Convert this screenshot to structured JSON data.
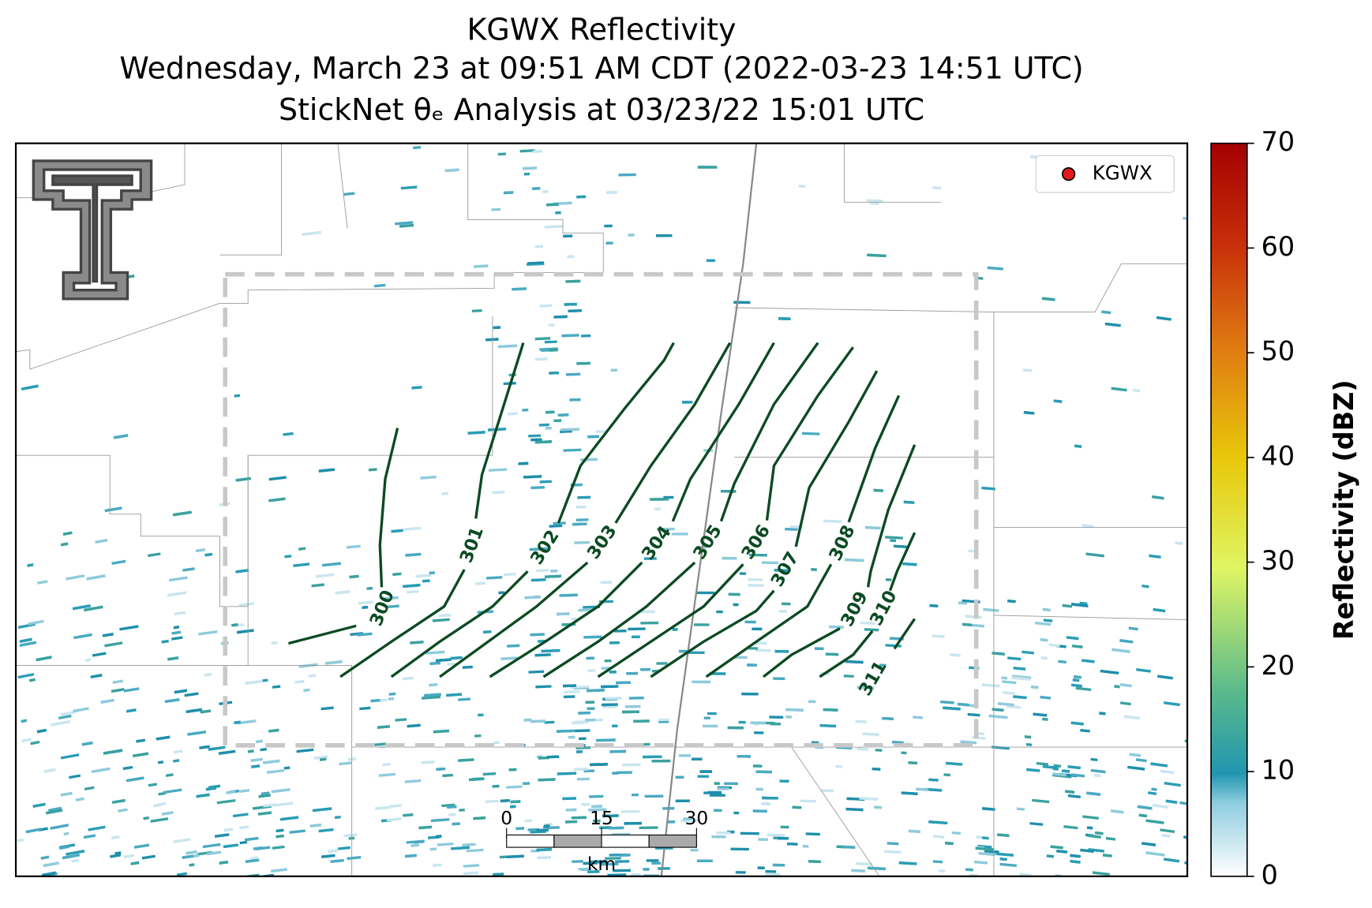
{
  "title": [
    "KGWX Reflectivity",
    "Wednesday, March 23 at 09:51 AM CDT (2022-03-23 14:51 UTC)",
    "StickNet θₑ Analysis at 03/23/22 15:01 UTC"
  ],
  "legend": {
    "label": "KGWX",
    "color": "#e31a1c"
  },
  "colorbar": {
    "label": "Reflectivity (dBZ)",
    "lim": [
      0,
      70
    ],
    "ticks": [
      0,
      10,
      20,
      30,
      40,
      50,
      60,
      70
    ]
  },
  "contours": {
    "color": "#0b4a22",
    "levels": [
      300,
      301,
      302,
      303,
      304,
      305,
      306,
      307,
      308,
      309,
      310,
      311
    ]
  },
  "scale_bar": {
    "ticks": [
      0,
      15,
      30
    ],
    "unit": "km"
  }
}
